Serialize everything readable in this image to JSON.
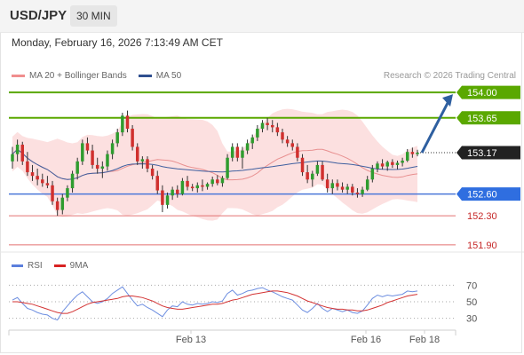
{
  "header": {
    "symbol": "USD/JPY",
    "timeframe": "30 MIN"
  },
  "datetime": "Monday, February 16, 2026 7:13:49 AM CET",
  "legend": {
    "bollinger": "MA 20 + Bollinger Bands",
    "ma50": "MA 50"
  },
  "credit": "Research © 2026 Trading Central",
  "rsi_legend": {
    "rsi": "RSI",
    "ma9": "9MA"
  },
  "colors": {
    "bull": "#2f9c2f",
    "bear": "#d0302e",
    "green_line": "#5aa800",
    "blue_line": "#4a77d9",
    "red_line": "#e37272",
    "band_fill": "#fbdada",
    "ma20": "#e89090",
    "ma50": "#3f5f9f",
    "arrow": "#2e5fa0",
    "price_tag": "#222222",
    "rsi": "#6d8ee0",
    "rsi_ma": "#d33333"
  },
  "chart_data": [
    {
      "type": "candlestick",
      "title": "",
      "x_ticks": [
        "Feb 13",
        "Feb 16",
        "Feb 18"
      ],
      "levels": [
        {
          "value": 154.0,
          "label": "154.00",
          "kind": "resistance",
          "color": "green"
        },
        {
          "value": 153.65,
          "label": "153.65",
          "kind": "resistance",
          "color": "green"
        },
        {
          "value": 153.17,
          "label": "153.17",
          "kind": "last_price",
          "color": "dark"
        },
        {
          "value": 152.6,
          "label": "152.60",
          "kind": "pivot",
          "color": "blue"
        },
        {
          "value": 152.3,
          "label": "152.30",
          "kind": "support",
          "color": "red"
        },
        {
          "value": 151.9,
          "label": "151.90",
          "kind": "support",
          "color": "red"
        }
      ],
      "y_range": [
        151.8,
        154.1
      ],
      "projection": {
        "from": 153.17,
        "to": 154.0
      },
      "ohlc": [
        [
          153.05,
          153.25,
          152.95,
          153.15
        ],
        [
          153.15,
          153.35,
          153.05,
          153.28
        ],
        [
          153.28,
          153.32,
          153.0,
          153.05
        ],
        [
          153.05,
          153.18,
          152.85,
          152.9
        ],
        [
          152.9,
          153.0,
          152.78,
          152.85
        ],
        [
          152.85,
          152.95,
          152.72,
          152.8
        ],
        [
          152.8,
          152.88,
          152.7,
          152.75
        ],
        [
          152.75,
          152.85,
          152.68,
          152.72
        ],
        [
          152.72,
          152.78,
          152.45,
          152.5
        ],
        [
          152.5,
          152.55,
          152.3,
          152.38
        ],
        [
          152.38,
          152.6,
          152.32,
          152.55
        ],
        [
          152.55,
          152.72,
          152.5,
          152.68
        ],
        [
          152.68,
          152.92,
          152.62,
          152.88
        ],
        [
          152.88,
          153.1,
          152.8,
          153.05
        ],
        [
          153.05,
          153.35,
          153.0,
          153.3
        ],
        [
          153.3,
          153.38,
          153.15,
          153.2
        ],
        [
          153.2,
          153.28,
          152.95,
          153.0
        ],
        [
          153.0,
          153.1,
          152.88,
          152.95
        ],
        [
          152.95,
          153.05,
          152.82,
          152.98
        ],
        [
          152.98,
          153.2,
          152.92,
          153.15
        ],
        [
          153.15,
          153.35,
          153.08,
          153.3
        ],
        [
          153.3,
          153.5,
          153.25,
          153.45
        ],
        [
          153.45,
          153.72,
          153.4,
          153.68
        ],
        [
          153.68,
          153.75,
          153.45,
          153.5
        ],
        [
          153.5,
          153.55,
          153.2,
          153.25
        ],
        [
          153.25,
          153.3,
          153.0,
          153.05
        ],
        [
          153.05,
          153.12,
          152.95,
          153.08
        ],
        [
          153.08,
          153.12,
          152.9,
          152.95
        ],
        [
          152.95,
          153.0,
          152.8,
          152.85
        ],
        [
          152.85,
          152.92,
          152.6,
          152.65
        ],
        [
          152.65,
          152.72,
          152.35,
          152.45
        ],
        [
          152.45,
          152.62,
          152.4,
          152.58
        ],
        [
          152.58,
          152.7,
          152.52,
          152.66
        ],
        [
          152.66,
          152.72,
          152.55,
          152.6
        ],
        [
          152.6,
          152.82,
          152.58,
          152.78
        ],
        [
          152.78,
          152.85,
          152.65,
          152.7
        ],
        [
          152.7,
          152.74,
          152.64,
          152.68
        ],
        [
          152.68,
          152.76,
          152.62,
          152.72
        ],
        [
          152.72,
          152.8,
          152.64,
          152.7
        ],
        [
          152.7,
          152.76,
          152.66,
          152.74
        ],
        [
          152.74,
          152.84,
          152.7,
          152.8
        ],
        [
          152.8,
          152.86,
          152.72,
          152.75
        ],
        [
          152.75,
          152.85,
          152.7,
          152.82
        ],
        [
          152.82,
          153.15,
          152.8,
          153.1
        ],
        [
          153.1,
          153.3,
          153.05,
          153.25
        ],
        [
          153.25,
          153.3,
          153.05,
          153.1
        ],
        [
          153.1,
          153.25,
          152.95,
          153.2
        ],
        [
          153.2,
          153.35,
          153.15,
          153.3
        ],
        [
          153.3,
          153.42,
          153.22,
          153.38
        ],
        [
          153.38,
          153.55,
          153.33,
          153.5
        ],
        [
          153.5,
          153.62,
          153.45,
          153.58
        ],
        [
          153.58,
          153.65,
          153.48,
          153.55
        ],
        [
          153.55,
          153.62,
          153.45,
          153.52
        ],
        [
          153.52,
          153.58,
          153.4,
          153.45
        ],
        [
          153.45,
          153.5,
          153.3,
          153.35
        ],
        [
          153.35,
          153.4,
          153.25,
          153.3
        ],
        [
          153.3,
          153.35,
          153.2,
          153.25
        ],
        [
          153.25,
          153.3,
          153.05,
          153.1
        ],
        [
          153.1,
          153.15,
          152.85,
          152.9
        ],
        [
          152.9,
          153.0,
          152.75,
          152.8
        ],
        [
          152.8,
          152.92,
          152.7,
          152.88
        ],
        [
          152.88,
          153.05,
          152.85,
          153.0
        ],
        [
          153.0,
          153.05,
          152.78,
          152.8
        ],
        [
          152.8,
          152.88,
          152.62,
          152.68
        ],
        [
          152.68,
          152.8,
          152.6,
          152.75
        ],
        [
          152.75,
          152.8,
          152.65,
          152.7
        ],
        [
          152.7,
          152.76,
          152.62,
          152.66
        ],
        [
          152.66,
          152.74,
          152.6,
          152.7
        ],
        [
          152.7,
          152.74,
          152.58,
          152.62
        ],
        [
          152.62,
          152.68,
          152.55,
          152.6
        ],
        [
          152.6,
          152.7,
          152.56,
          152.66
        ],
        [
          152.66,
          152.85,
          152.64,
          152.8
        ],
        [
          152.8,
          153.0,
          152.76,
          152.95
        ],
        [
          152.95,
          153.05,
          152.9,
          153.02
        ],
        [
          153.02,
          153.08,
          152.94,
          152.98
        ],
        [
          152.98,
          153.06,
          152.92,
          153.04
        ],
        [
          153.04,
          153.08,
          152.96,
          153.0
        ],
        [
          153.0,
          153.06,
          152.94,
          153.03
        ],
        [
          153.03,
          153.1,
          152.98,
          153.06
        ],
        [
          153.06,
          153.22,
          153.04,
          153.18
        ],
        [
          153.18,
          153.24,
          153.1,
          153.15
        ],
        [
          153.15,
          153.21,
          153.12,
          153.17
        ]
      ]
    },
    {
      "type": "line",
      "name": "RSI panel",
      "y_ticks": [
        70,
        50,
        30
      ],
      "y_range": [
        20,
        80
      ],
      "series": [
        {
          "name": "RSI",
          "values": [
            52,
            55,
            48,
            42,
            40,
            37,
            35,
            34,
            30,
            28,
            38,
            45,
            52,
            58,
            62,
            56,
            50,
            48,
            50,
            54,
            60,
            64,
            68,
            60,
            52,
            45,
            47,
            43,
            40,
            36,
            32,
            40,
            45,
            44,
            50,
            47,
            46,
            48,
            47,
            48,
            50,
            49,
            51,
            60,
            64,
            58,
            60,
            63,
            64,
            66,
            67,
            64,
            62,
            59,
            56,
            54,
            52,
            46,
            40,
            37,
            42,
            48,
            42,
            38,
            42,
            40,
            38,
            40,
            37,
            36,
            39,
            46,
            54,
            58,
            56,
            58,
            57,
            58,
            59,
            63,
            62,
            63
          ]
        },
        {
          "name": "9MA",
          "values": [
            50,
            50,
            49,
            48,
            47,
            45,
            43,
            41,
            39,
            37,
            36,
            36,
            38,
            41,
            44,
            47,
            49,
            50,
            51,
            52,
            53,
            54,
            56,
            57,
            57,
            56,
            55,
            53,
            51,
            48,
            45,
            43,
            42,
            41,
            41,
            42,
            43,
            44,
            45,
            46,
            47,
            47,
            48,
            50,
            52,
            53,
            55,
            57,
            59,
            60,
            61,
            62,
            63,
            63,
            62,
            61,
            59,
            57,
            54,
            51,
            49,
            47,
            45,
            43,
            42,
            41,
            41,
            40,
            40,
            39,
            39,
            40,
            42,
            44,
            46,
            49,
            51,
            53,
            55,
            57,
            58,
            59
          ]
        }
      ]
    }
  ]
}
